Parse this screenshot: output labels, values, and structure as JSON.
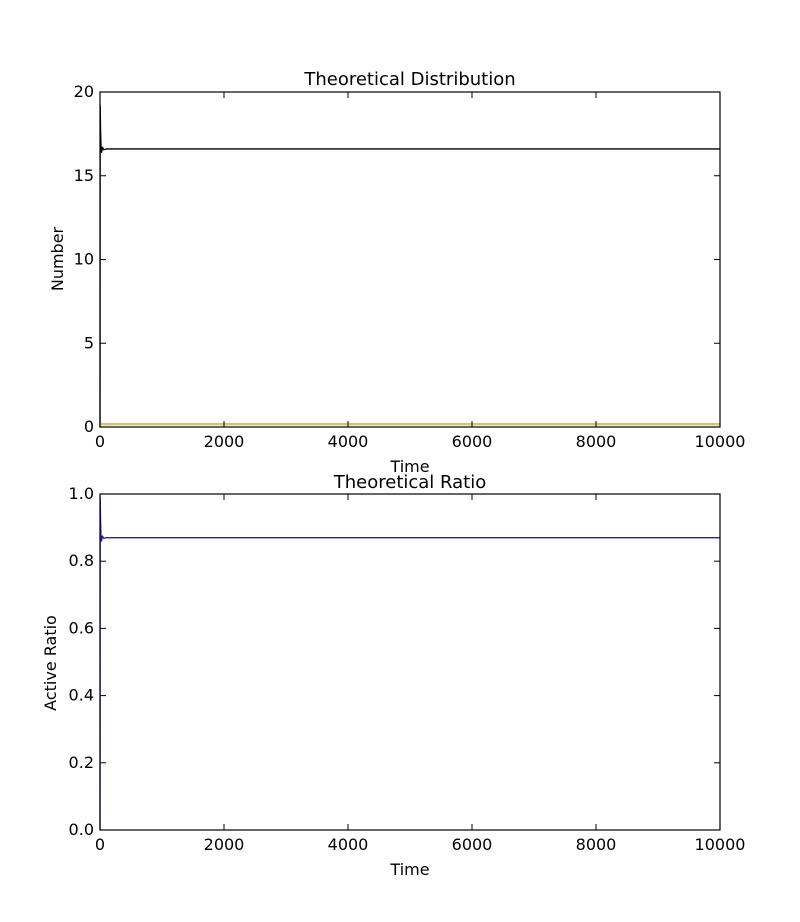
{
  "chart_data": [
    {
      "type": "line",
      "title": "Theoretical Distribution",
      "xlabel": "Time",
      "ylabel": "Number",
      "xlim": [
        0,
        10000
      ],
      "ylim": [
        0,
        20
      ],
      "xticks": [
        "0",
        "2000",
        "4000",
        "6000",
        "8000",
        "10000"
      ],
      "yticks": [
        "0",
        "5",
        "10",
        "15",
        "20"
      ],
      "grid": false,
      "series": [
        {
          "color": "#000000",
          "x": [
            0,
            3,
            8,
            15,
            25,
            40,
            60,
            100,
            10000
          ],
          "y": [
            0,
            19.2,
            18.0,
            16.9,
            16.4,
            16.7,
            16.55,
            16.6,
            16.6
          ]
        },
        {
          "color": "#d4c46a",
          "x": [
            0,
            5,
            30,
            100,
            10000
          ],
          "y": [
            0.2,
            0.2,
            0.18,
            0.17,
            0.17
          ]
        }
      ]
    },
    {
      "type": "line",
      "title": "Theoretical Ratio",
      "xlabel": "Time",
      "ylabel": "Active Ratio",
      "xlim": [
        0,
        10000
      ],
      "ylim": [
        0,
        1
      ],
      "xticks": [
        "0",
        "2000",
        "4000",
        "6000",
        "8000",
        "10000"
      ],
      "yticks": [
        "0.0",
        "0.2",
        "0.4",
        "0.6",
        "0.8",
        "1.0"
      ],
      "grid": false,
      "series": [
        {
          "color": "#1f1fbf",
          "x": [
            0,
            3,
            8,
            15,
            25,
            40,
            60,
            100,
            10000
          ],
          "y": [
            0,
            0.99,
            0.93,
            0.88,
            0.86,
            0.875,
            0.868,
            0.87,
            0.87
          ]
        }
      ]
    }
  ]
}
